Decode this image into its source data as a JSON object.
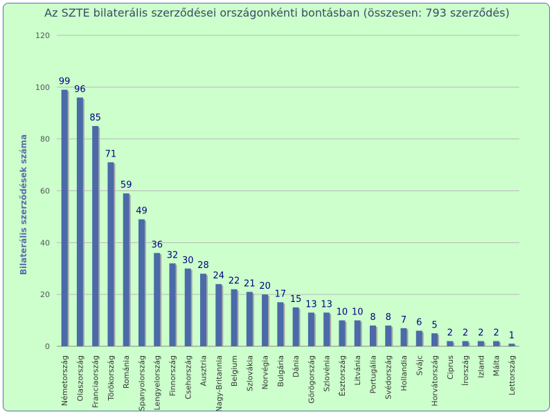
{
  "chart_data": {
    "type": "bar",
    "title": "Az SZTE bilaterális szerződései országonkénti bontásban (összesen: 793 szerződés)",
    "xlabel": "",
    "ylabel": "Bilaterális szerződések száma",
    "ylim": [
      0,
      120
    ],
    "yticks": [
      0,
      20,
      40,
      60,
      80,
      100,
      120
    ],
    "grid": true,
    "legend": "none",
    "categories": [
      "Németország",
      "Olaszország",
      "Franciaország",
      "Törökország",
      "Románia",
      "Spanyolország",
      "Lengyelország",
      "Finnország",
      "Csehország",
      "Ausztria",
      "Nagy-Britannia",
      "Belgium",
      "Szlovákia",
      "Norvégia",
      "Bulgária",
      "Dánia",
      "Görögország",
      "Szlovénia",
      "Észtország",
      "Litvánia",
      "Portugália",
      "Svédország",
      "Hollandia",
      "Svájc",
      "Horvátország",
      "Ciprus",
      "Írország",
      "Izland",
      "Málta",
      "Lettország"
    ],
    "values": [
      99,
      96,
      85,
      71,
      59,
      49,
      36,
      32,
      30,
      28,
      24,
      22,
      21,
      20,
      17,
      15,
      13,
      13,
      10,
      10,
      8,
      8,
      7,
      6,
      5,
      2,
      2,
      2,
      2,
      1
    ],
    "colors": {
      "bar": "#4a6aa8",
      "shadow": "#a8a8a8",
      "grid": "#b8b8b8",
      "axis": "#888888",
      "value_label": "#000080"
    }
  }
}
